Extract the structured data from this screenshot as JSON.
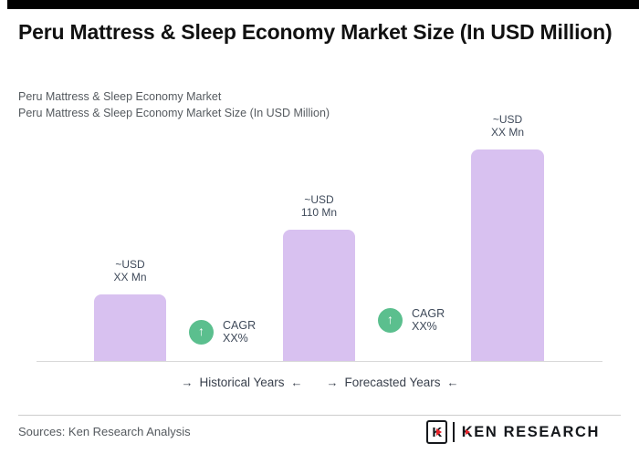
{
  "header": {
    "title": "Peru Mattress & Sleep Economy Market Size (In USD Million)",
    "subtitle_line1": "Peru Mattress & Sleep Economy Market",
    "subtitle_line2": "Peru Mattress & Sleep Economy Market Size (In USD Million)"
  },
  "chart_data": {
    "type": "bar",
    "title": "Peru Mattress & Sleep Economy Market Size (In USD Million)",
    "unit": "USD Million",
    "bars": [
      {
        "line1": "~USD",
        "line2": "XX Mn",
        "value_estimate": 56,
        "section": "Historical Years"
      },
      {
        "line1": "~USD",
        "line2": "110 Mn",
        "value_estimate": 110,
        "section": "Historical Years"
      },
      {
        "line1": "~USD",
        "line2": "XX Mn",
        "value_estimate": 177,
        "section": "Forecasted Years"
      }
    ],
    "cagr_badges": [
      {
        "label": "CAGR",
        "value": "XX%"
      },
      {
        "label": "CAGR",
        "value": "XX%"
      }
    ],
    "axis_sections": [
      "Historical Years",
      "Forecasted Years"
    ],
    "bar_color": "#d8c1f0",
    "badge_color": "#5bbf8e",
    "grid": false,
    "legend": false
  },
  "icons": {
    "up_arrow": "↑",
    "right_arrow": "→",
    "left_arrow": "←"
  },
  "footer": {
    "sources_text": "Sources: Ken Research Analysis",
    "logo": {
      "mark_letter": "K",
      "name": "KEN RESEARCH"
    }
  },
  "colors": {
    "accent_bar": "#000000",
    "bar_fill": "#d8c1f0",
    "badge_green": "#5bbf8e",
    "logo_red": "#e8232a"
  }
}
